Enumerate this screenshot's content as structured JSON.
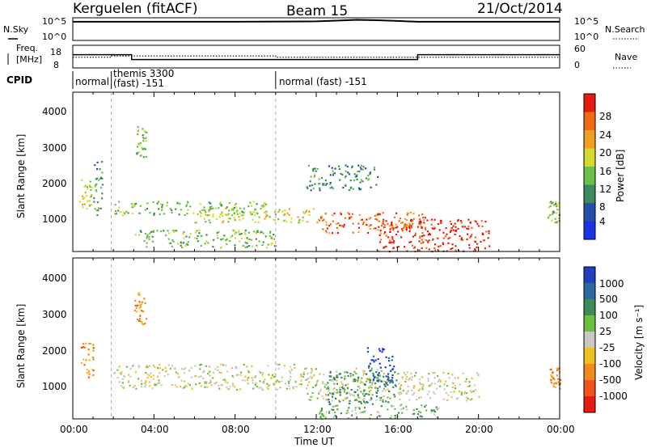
{
  "header": {
    "title": "Kerguelen (fitACF)",
    "beam": "Beam 15",
    "date": "21/Oct/2014"
  },
  "top_panels": {
    "nsky_label": "N.Sky",
    "nsky_ticks": [
      "10^5",
      "10^0"
    ],
    "nsearch_label": "N.Search",
    "nsearch_ticks": [
      "10^5",
      "10^0"
    ],
    "freq_label_1": "Freq.",
    "freq_label_2": "[MHz]",
    "freq_ticks": [
      "18",
      "8"
    ],
    "nave_label": "Nave",
    "nave_ticks": [
      "60",
      "0"
    ],
    "cpid_label": "CPID",
    "cpid_segments": [
      {
        "text": "normal",
        "start_hr": 0.0
      },
      {
        "text": "themis 3300",
        "text2": "(fast) -151",
        "start_hr": 1.9
      },
      {
        "text": "normal (fast) -151",
        "start_hr": 10.0
      }
    ]
  },
  "axes": {
    "ylabel": "Slant Range [km]",
    "xlabel": "Time UT",
    "x_ticks": [
      "00:00",
      "04:00",
      "08:00",
      "12:00",
      "16:00",
      "20:00",
      "00:00"
    ],
    "y_ticks": [
      "1000",
      "2000",
      "3000",
      "4000"
    ]
  },
  "colorbars": {
    "power": {
      "label": "Power [dB]",
      "ticks": [
        "4",
        "8",
        "12",
        "16",
        "20",
        "24",
        "28"
      ],
      "colors": [
        "#1a33e6",
        "#2450a8",
        "#3d8a5e",
        "#6cbf4a",
        "#d6d92b",
        "#f0a020",
        "#f06a14",
        "#e61c10"
      ]
    },
    "velocity": {
      "label": "Velocity [m s⁻¹]",
      "ticks": [
        "1000",
        "500",
        "100",
        "25",
        "-25",
        "-100",
        "-500",
        "-1000"
      ],
      "colors": [
        "#2040c0",
        "#2a6aa0",
        "#3f8a5a",
        "#6cc040",
        "#c8c8c0",
        "#f0c020",
        "#f08a1a",
        "#f05418",
        "#e61c10"
      ]
    }
  },
  "chart_data": [
    {
      "type": "line",
      "title": "N.Sky / N.Search",
      "x_unit": "hours UT",
      "series": [
        {
          "name": "N.Sky",
          "x": [
            0,
            4,
            8,
            12,
            13,
            14,
            15,
            16,
            17,
            20,
            24
          ],
          "y": [
            4.4,
            4.4,
            4.4,
            4.5,
            4.7,
            4.9,
            4.8,
            4.6,
            4.4,
            4.4,
            4.4
          ]
        }
      ]
    },
    {
      "type": "line",
      "title": "Freq. / Nave",
      "x_unit": "hours UT",
      "series": [
        {
          "name": "Freq.",
          "x": [
            0,
            2.9,
            2.9,
            17.0,
            17.0,
            24
          ],
          "y": [
            14.0,
            14.0,
            11.5,
            11.5,
            14.0,
            14.0
          ]
        },
        {
          "name": "Nave",
          "x": [
            0,
            1.9,
            1.9,
            10.0,
            10.0,
            24
          ],
          "y": [
            28,
            28,
            32,
            32,
            28,
            28
          ]
        }
      ]
    },
    {
      "type": "heatmap",
      "title": "Power [dB]",
      "x_unit": "hours UT",
      "y_unit": "km",
      "xlim": [
        0,
        24
      ],
      "ylim": [
        180,
        4600
      ],
      "features": [
        {
          "t0": 0.3,
          "t1": 0.9,
          "r0": 1300,
          "r1": 2300,
          "level": 4
        },
        {
          "t0": 1.0,
          "t1": 1.5,
          "r0": 1200,
          "r1": 2700,
          "level": 2
        },
        {
          "t0": 3.0,
          "t1": 3.6,
          "r0": 2800,
          "r1": 3700,
          "level": 3
        },
        {
          "t0": 2.0,
          "t1": 9.5,
          "r0": 1200,
          "r1": 1600,
          "level": 3
        },
        {
          "t0": 6.0,
          "t1": 12.0,
          "r0": 1000,
          "r1": 1400,
          "level": 4
        },
        {
          "t0": 12.0,
          "t1": 17.5,
          "r0": 700,
          "r1": 1300,
          "level": 6
        },
        {
          "t0": 15.0,
          "t1": 20.5,
          "r0": 200,
          "r1": 1100,
          "level": 7
        },
        {
          "t0": 11.5,
          "t1": 15.0,
          "r0": 1900,
          "r1": 2600,
          "level": 2
        },
        {
          "t0": 3.0,
          "t1": 10.0,
          "r0": 300,
          "r1": 800,
          "level": 3
        },
        {
          "t0": 23.4,
          "t1": 24.0,
          "r0": 1000,
          "r1": 1600,
          "level": 3
        }
      ]
    },
    {
      "type": "heatmap",
      "title": "Velocity [m s^-1]",
      "x_unit": "hours UT",
      "y_unit": "km",
      "xlim": [
        0,
        24
      ],
      "ylim": [
        180,
        4600
      ],
      "features": [
        {
          "t0": 0.3,
          "t1": 1.0,
          "r0": 1300,
          "r1": 2300,
          "level": 6
        },
        {
          "t0": 3.0,
          "t1": 3.6,
          "r0": 2800,
          "r1": 3700,
          "level": 6
        },
        {
          "t0": 2.0,
          "t1": 12.0,
          "r0": 1000,
          "r1": 1700,
          "level": 4
        },
        {
          "t0": 11.5,
          "t1": 15.5,
          "r0": 700,
          "r1": 1600,
          "level": 4
        },
        {
          "t0": 12.5,
          "t1": 16.0,
          "r0": 600,
          "r1": 1500,
          "level": 2
        },
        {
          "t0": 14.5,
          "t1": 15.8,
          "r0": 1200,
          "r1": 2200,
          "level": 0
        },
        {
          "t0": 16.0,
          "t1": 20.0,
          "r0": 700,
          "r1": 1500,
          "level": 4
        },
        {
          "t0": 12.0,
          "t1": 18.0,
          "r0": 200,
          "r1": 600,
          "level": 3
        },
        {
          "t0": 23.5,
          "t1": 24.0,
          "r0": 1000,
          "r1": 1600,
          "level": 6
        }
      ]
    }
  ]
}
